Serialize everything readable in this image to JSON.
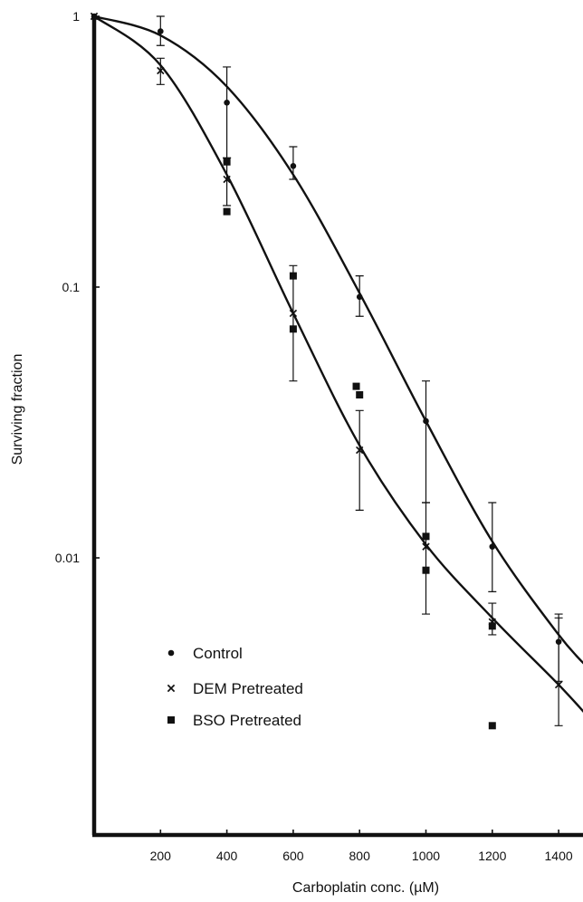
{
  "chart_data": {
    "type": "scatter",
    "title": "",
    "xlabel": "Carboplatin conc. (µM)",
    "ylabel": "Surviving fraction",
    "xlim": [
      0,
      1450
    ],
    "ylim": [
      0.0006,
      1
    ],
    "y_scale": "log",
    "grid": false,
    "legend_position": "bottom-left",
    "x_ticks": [
      "200",
      "400",
      "600",
      "800",
      "1000",
      "1200",
      "1400"
    ],
    "y_ticks": [
      "1",
      "0.1",
      "0.01"
    ],
    "series": [
      {
        "name": "Control",
        "marker": "circle",
        "points": [
          {
            "x": 0,
            "y": 1.0
          },
          {
            "x": 200,
            "y": 0.88,
            "err_low": 0.78,
            "err_high": 1.0
          },
          {
            "x": 400,
            "y": 0.48,
            "err_low": 0.3,
            "err_high": 0.65
          },
          {
            "x": 600,
            "y": 0.28,
            "err_low": 0.25,
            "err_high": 0.33
          },
          {
            "x": 800,
            "y": 0.092,
            "err_low": 0.078,
            "err_high": 0.11
          },
          {
            "x": 1000,
            "y": 0.032,
            "err_low": 0.016,
            "err_high": 0.045
          },
          {
            "x": 1200,
            "y": 0.011,
            "err_low": 0.0075,
            "err_high": 0.016
          },
          {
            "x": 1400,
            "y": 0.0049,
            "err_low": 0.0035,
            "err_high": 0.0062
          }
        ]
      },
      {
        "name": "DEM Pretreated",
        "marker": "cross",
        "points": [
          {
            "x": 0,
            "y": 1.0
          },
          {
            "x": 200,
            "y": 0.63,
            "err_low": 0.56,
            "err_high": 0.7
          },
          {
            "x": 400,
            "y": 0.25,
            "err_low": 0.2,
            "err_high": 0.3
          },
          {
            "x": 600,
            "y": 0.08,
            "err_low": 0.045,
            "err_high": 0.12
          },
          {
            "x": 800,
            "y": 0.025,
            "err_low": 0.015,
            "err_high": 0.035
          },
          {
            "x": 1000,
            "y": 0.011,
            "err_low": 0.0062,
            "err_high": 0.016
          },
          {
            "x": 1200,
            "y": 0.0058,
            "err_low": 0.0052,
            "err_high": 0.0068
          },
          {
            "x": 1400,
            "y": 0.0034,
            "err_low": 0.0024,
            "err_high": 0.006
          }
        ]
      },
      {
        "name": "BSO Pretreated",
        "marker": "square",
        "points": [
          {
            "x": 400,
            "y": 0.29
          },
          {
            "x": 400,
            "y": 0.19
          },
          {
            "x": 600,
            "y": 0.11
          },
          {
            "x": 600,
            "y": 0.07
          },
          {
            "x": 790,
            "y": 0.043
          },
          {
            "x": 800,
            "y": 0.04
          },
          {
            "x": 1000,
            "y": 0.012
          },
          {
            "x": 1000,
            "y": 0.009
          },
          {
            "x": 1200,
            "y": 0.0056
          },
          {
            "x": 1200,
            "y": 0.0024
          }
        ]
      }
    ],
    "fit_curves": [
      {
        "series": "Control",
        "points": [
          [
            0,
            1.0
          ],
          [
            200,
            0.85
          ],
          [
            400,
            0.55
          ],
          [
            600,
            0.26
          ],
          [
            800,
            0.095
          ],
          [
            1000,
            0.032
          ],
          [
            1200,
            0.0115
          ],
          [
            1400,
            0.0052
          ],
          [
            1500,
            0.0038
          ]
        ]
      },
      {
        "series": "DEM Pretreated",
        "points": [
          [
            0,
            1.0
          ],
          [
            200,
            0.66
          ],
          [
            400,
            0.26
          ],
          [
            600,
            0.08
          ],
          [
            800,
            0.026
          ],
          [
            1000,
            0.0112
          ],
          [
            1200,
            0.006
          ],
          [
            1400,
            0.0034
          ],
          [
            1500,
            0.0025
          ]
        ]
      }
    ]
  }
}
